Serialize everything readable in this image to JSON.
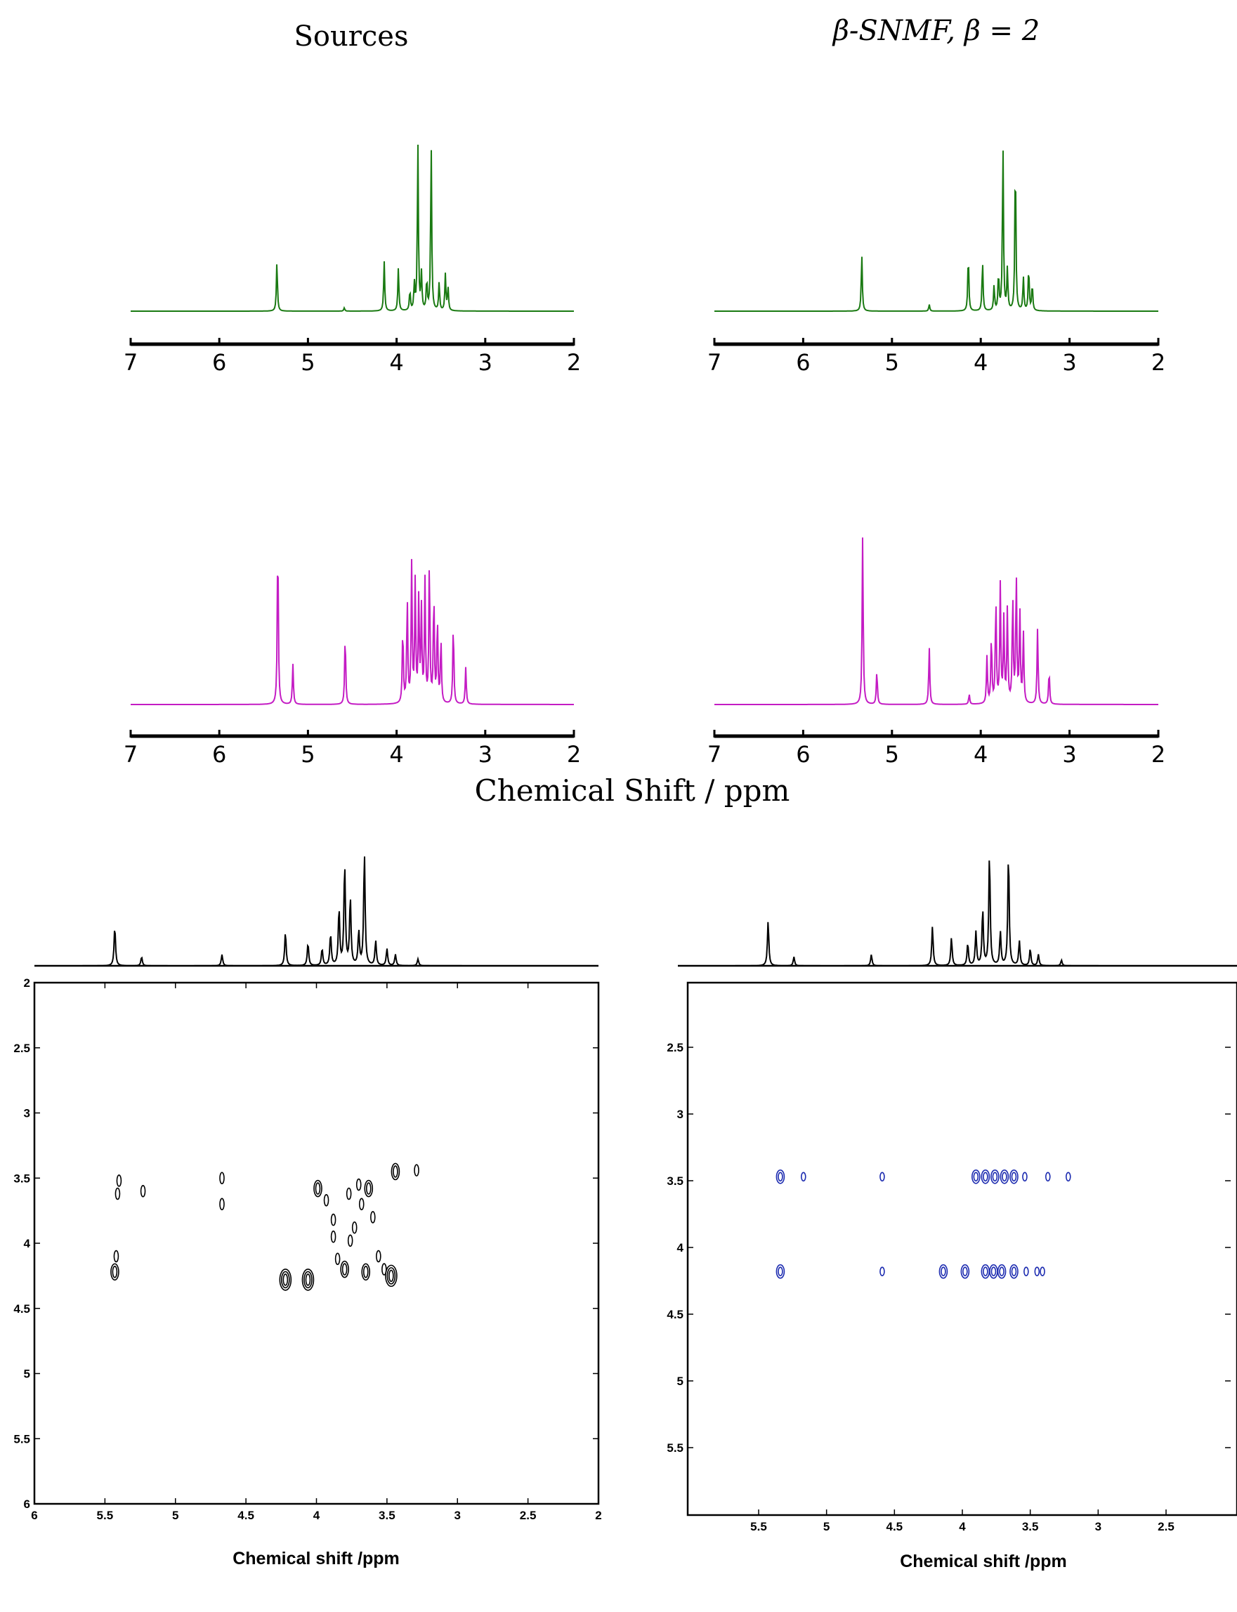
{
  "figure": {
    "col_left_title": "Sources",
    "col_right_title": "β-SNMF, β = 2",
    "shared_xlabel": "Chemical Shift / ppm"
  },
  "colors": {
    "green": "#1a7a12",
    "magenta": "#c41cc4",
    "black": "#000000",
    "blue_contour": "#1c2bb0"
  },
  "chart_data": [
    {
      "id": "spec-src-1",
      "type": "line",
      "title": "Sources",
      "xlim": [
        7,
        2
      ],
      "x_ticks": [
        "7",
        "6",
        "5",
        "4",
        "3",
        "2"
      ],
      "color": "green",
      "peaks": [
        {
          "x": 5.35,
          "h": 0.3
        },
        {
          "x": 4.59,
          "h": 0.02
        },
        {
          "x": 4.14,
          "h": 0.3
        },
        {
          "x": 3.98,
          "h": 0.26
        },
        {
          "x": 3.85,
          "h": 0.12
        },
        {
          "x": 3.8,
          "h": 0.16
        },
        {
          "x": 3.76,
          "h": 1.0
        },
        {
          "x": 3.72,
          "h": 0.22
        },
        {
          "x": 3.66,
          "h": 0.18
        },
        {
          "x": 3.61,
          "h": 1.0
        },
        {
          "x": 3.52,
          "h": 0.17
        },
        {
          "x": 3.45,
          "h": 0.22
        },
        {
          "x": 3.42,
          "h": 0.14
        }
      ]
    },
    {
      "id": "spec-est-1",
      "type": "line",
      "title": "β-SNMF, β = 2",
      "xlim": [
        7,
        2
      ],
      "x_ticks": [
        "7",
        "6",
        "5",
        "4",
        "3",
        "2"
      ],
      "color": "green",
      "peaks": [
        {
          "x": 5.34,
          "h": 0.34
        },
        {
          "x": 4.58,
          "h": 0.04
        },
        {
          "x": 4.14,
          "h": 0.34
        },
        {
          "x": 3.98,
          "h": 0.3
        },
        {
          "x": 3.85,
          "h": 0.15
        },
        {
          "x": 3.8,
          "h": 0.22
        },
        {
          "x": 3.75,
          "h": 1.0
        },
        {
          "x": 3.7,
          "h": 0.25
        },
        {
          "x": 3.61,
          "h": 0.94
        },
        {
          "x": 3.52,
          "h": 0.2
        },
        {
          "x": 3.46,
          "h": 0.26
        },
        {
          "x": 3.42,
          "h": 0.16
        }
      ]
    },
    {
      "id": "spec-src-2",
      "type": "line",
      "xlim": [
        7,
        2
      ],
      "x_ticks": [
        "7",
        "6",
        "5",
        "4",
        "3",
        "2"
      ],
      "color": "magenta",
      "peaks": [
        {
          "x": 5.34,
          "h": 1.0
        },
        {
          "x": 5.17,
          "h": 0.24
        },
        {
          "x": 4.58,
          "h": 0.42
        },
        {
          "x": 3.93,
          "h": 0.45
        },
        {
          "x": 3.88,
          "h": 0.62
        },
        {
          "x": 3.83,
          "h": 0.82
        },
        {
          "x": 3.79,
          "h": 0.72
        },
        {
          "x": 3.75,
          "h": 0.62
        },
        {
          "x": 3.72,
          "h": 0.55
        },
        {
          "x": 3.68,
          "h": 0.72
        },
        {
          "x": 3.63,
          "h": 0.84
        },
        {
          "x": 3.58,
          "h": 0.65
        },
        {
          "x": 3.54,
          "h": 0.5
        },
        {
          "x": 3.5,
          "h": 0.38
        },
        {
          "x": 3.36,
          "h": 0.48
        },
        {
          "x": 3.22,
          "h": 0.22
        }
      ]
    },
    {
      "id": "spec-est-2",
      "type": "line",
      "xlim": [
        7,
        2
      ],
      "x_ticks": [
        "7",
        "6",
        "5",
        "4",
        "3",
        "2"
      ],
      "color": "magenta",
      "peaks": [
        {
          "x": 5.33,
          "h": 1.0
        },
        {
          "x": 5.17,
          "h": 0.2
        },
        {
          "x": 4.58,
          "h": 0.34
        },
        {
          "x": 4.13,
          "h": 0.06
        },
        {
          "x": 3.93,
          "h": 0.28
        },
        {
          "x": 3.88,
          "h": 0.4
        },
        {
          "x": 3.83,
          "h": 0.62
        },
        {
          "x": 3.78,
          "h": 0.7
        },
        {
          "x": 3.74,
          "h": 0.5
        },
        {
          "x": 3.7,
          "h": 0.56
        },
        {
          "x": 3.64,
          "h": 0.64
        },
        {
          "x": 3.6,
          "h": 0.76
        },
        {
          "x": 3.56,
          "h": 0.55
        },
        {
          "x": 3.52,
          "h": 0.42
        },
        {
          "x": 3.36,
          "h": 0.45
        },
        {
          "x": 3.23,
          "h": 0.2
        }
      ]
    },
    {
      "id": "cosy-src",
      "type": "scatter",
      "xlabel": "Chemical shift /ppm",
      "xlim": [
        6,
        2
      ],
      "ylim": [
        2,
        6
      ],
      "x_ticks": [
        "6",
        "5.5",
        "5",
        "4.5",
        "4",
        "3.5",
        "3",
        "2.5",
        "2"
      ],
      "y_ticks": [
        "2",
        "2.5",
        "3",
        "3.5",
        "4",
        "4.5",
        "5",
        "5.5",
        "6"
      ],
      "color": "black",
      "top_spectrum_peaks": [
        {
          "x": 5.43,
          "h": 0.35
        },
        {
          "x": 5.24,
          "h": 0.08
        },
        {
          "x": 4.67,
          "h": 0.1
        },
        {
          "x": 4.22,
          "h": 0.3
        },
        {
          "x": 4.06,
          "h": 0.2
        },
        {
          "x": 3.96,
          "h": 0.15
        },
        {
          "x": 3.9,
          "h": 0.28
        },
        {
          "x": 3.84,
          "h": 0.5
        },
        {
          "x": 3.8,
          "h": 0.9
        },
        {
          "x": 3.76,
          "h": 0.6
        },
        {
          "x": 3.7,
          "h": 0.3
        },
        {
          "x": 3.66,
          "h": 1.0
        },
        {
          "x": 3.58,
          "h": 0.22
        },
        {
          "x": 3.5,
          "h": 0.15
        },
        {
          "x": 3.44,
          "h": 0.1
        },
        {
          "x": 3.28,
          "h": 0.06
        }
      ],
      "points": [
        {
          "x": 5.4,
          "y": 3.52,
          "s": 1
        },
        {
          "x": 5.41,
          "y": 3.62,
          "s": 1
        },
        {
          "x": 5.23,
          "y": 3.6,
          "s": 1
        },
        {
          "x": 4.67,
          "y": 3.5,
          "s": 1
        },
        {
          "x": 4.67,
          "y": 3.7,
          "s": 1
        },
        {
          "x": 5.43,
          "y": 4.22,
          "s": 2
        },
        {
          "x": 5.42,
          "y": 4.1,
          "s": 1
        },
        {
          "x": 4.22,
          "y": 4.28,
          "s": 3
        },
        {
          "x": 4.06,
          "y": 4.28,
          "s": 3
        },
        {
          "x": 3.99,
          "y": 3.58,
          "s": 2
        },
        {
          "x": 3.93,
          "y": 3.67,
          "s": 1
        },
        {
          "x": 3.88,
          "y": 3.82,
          "s": 1
        },
        {
          "x": 3.88,
          "y": 3.95,
          "s": 1
        },
        {
          "x": 3.85,
          "y": 4.12,
          "s": 1
        },
        {
          "x": 3.8,
          "y": 4.2,
          "s": 2
        },
        {
          "x": 3.77,
          "y": 3.62,
          "s": 1
        },
        {
          "x": 3.76,
          "y": 3.98,
          "s": 1
        },
        {
          "x": 3.73,
          "y": 3.88,
          "s": 1
        },
        {
          "x": 3.7,
          "y": 3.55,
          "s": 1
        },
        {
          "x": 3.68,
          "y": 3.7,
          "s": 1
        },
        {
          "x": 3.65,
          "y": 4.22,
          "s": 2
        },
        {
          "x": 3.63,
          "y": 3.58,
          "s": 2
        },
        {
          "x": 3.6,
          "y": 3.8,
          "s": 1
        },
        {
          "x": 3.56,
          "y": 4.1,
          "s": 1
        },
        {
          "x": 3.52,
          "y": 4.2,
          "s": 1
        },
        {
          "x": 3.47,
          "y": 4.25,
          "s": 3
        },
        {
          "x": 3.44,
          "y": 3.45,
          "s": 2
        },
        {
          "x": 3.29,
          "y": 3.44,
          "s": 1
        }
      ]
    },
    {
      "id": "cosy-est",
      "type": "scatter",
      "xlabel": "Chemical shift /ppm",
      "xlim": [
        6,
        2
      ],
      "ylim": [
        2,
        6
      ],
      "x_ticks": [
        "5.5",
        "5",
        "4.5",
        "4",
        "3.5",
        "3",
        "2.5"
      ],
      "y_ticks": [
        "2.5",
        "3",
        "3.5",
        "4",
        "4.5",
        "5",
        "5.5"
      ],
      "color": "blue_contour",
      "top_spectrum_peaks": [
        {
          "x": 5.43,
          "h": 0.4
        },
        {
          "x": 5.24,
          "h": 0.08
        },
        {
          "x": 4.67,
          "h": 0.1
        },
        {
          "x": 4.22,
          "h": 0.35
        },
        {
          "x": 4.08,
          "h": 0.25
        },
        {
          "x": 3.96,
          "h": 0.2
        },
        {
          "x": 3.9,
          "h": 0.3
        },
        {
          "x": 3.85,
          "h": 0.5
        },
        {
          "x": 3.8,
          "h": 1.0
        },
        {
          "x": 3.72,
          "h": 0.3
        },
        {
          "x": 3.66,
          "h": 1.0
        },
        {
          "x": 3.58,
          "h": 0.22
        },
        {
          "x": 3.5,
          "h": 0.15
        },
        {
          "x": 3.44,
          "h": 0.1
        },
        {
          "x": 3.27,
          "h": 0.05
        }
      ],
      "points": [
        {
          "x": 5.34,
          "y": 3.47,
          "s": 2
        },
        {
          "x": 5.17,
          "y": 3.47,
          "s": 1
        },
        {
          "x": 4.59,
          "y": 3.47,
          "s": 1
        },
        {
          "x": 3.9,
          "y": 3.47,
          "s": 2
        },
        {
          "x": 3.83,
          "y": 3.47,
          "s": 2
        },
        {
          "x": 3.76,
          "y": 3.47,
          "s": 2
        },
        {
          "x": 3.69,
          "y": 3.47,
          "s": 2
        },
        {
          "x": 3.62,
          "y": 3.47,
          "s": 2
        },
        {
          "x": 3.54,
          "y": 3.47,
          "s": 1
        },
        {
          "x": 3.37,
          "y": 3.47,
          "s": 1
        },
        {
          "x": 3.22,
          "y": 3.47,
          "s": 1
        },
        {
          "x": 5.34,
          "y": 4.18,
          "s": 2
        },
        {
          "x": 4.59,
          "y": 4.18,
          "s": 1
        },
        {
          "x": 4.14,
          "y": 4.18,
          "s": 2
        },
        {
          "x": 3.98,
          "y": 4.18,
          "s": 2
        },
        {
          "x": 3.83,
          "y": 4.18,
          "s": 2
        },
        {
          "x": 3.77,
          "y": 4.18,
          "s": 2
        },
        {
          "x": 3.71,
          "y": 4.18,
          "s": 2
        },
        {
          "x": 3.62,
          "y": 4.18,
          "s": 2
        },
        {
          "x": 3.53,
          "y": 4.18,
          "s": 1
        },
        {
          "x": 3.45,
          "y": 4.18,
          "s": 1
        },
        {
          "x": 3.41,
          "y": 4.18,
          "s": 1
        }
      ]
    }
  ]
}
